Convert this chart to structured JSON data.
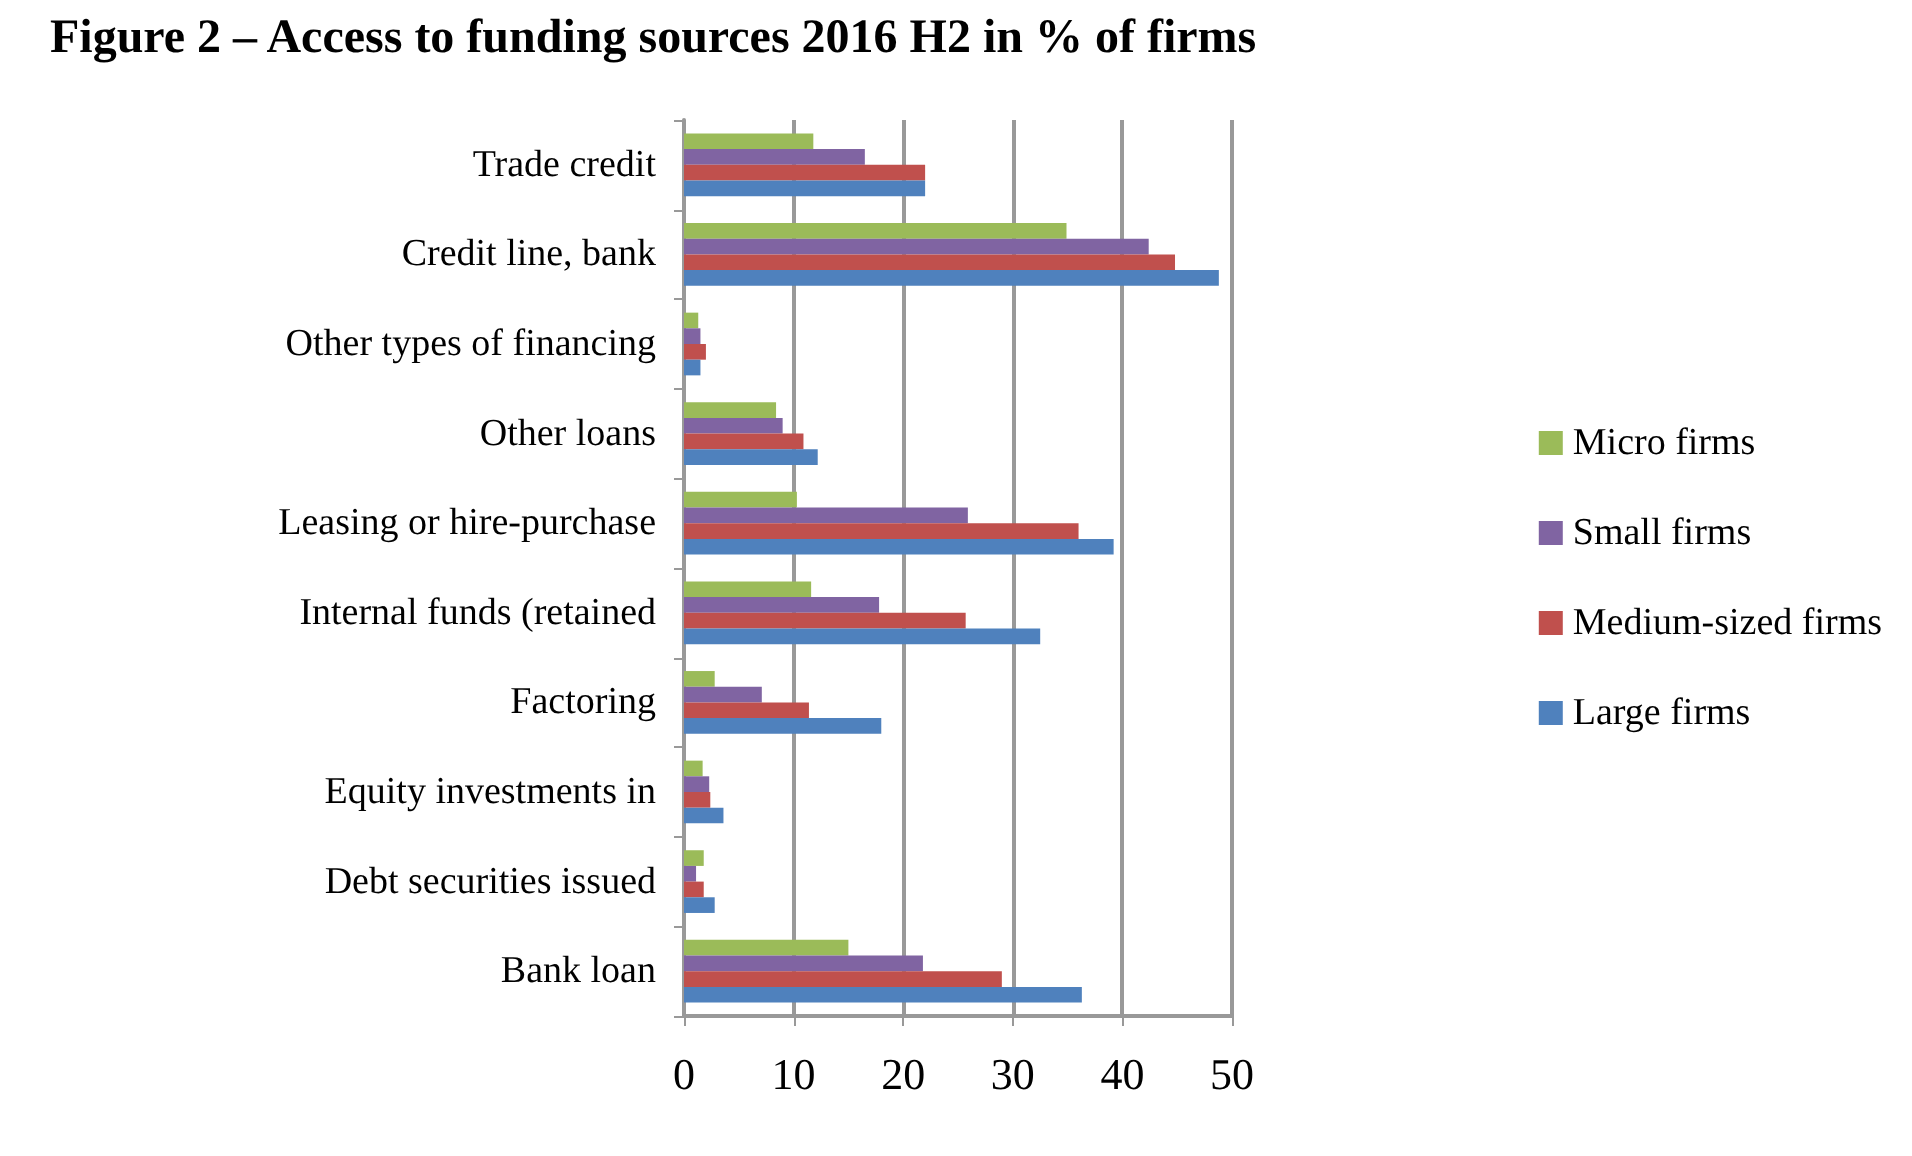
{
  "chart_data": {
    "type": "bar",
    "orientation": "horizontal",
    "title": "Figure 2 – Access to funding sources 2016 H2 in % of firms",
    "categories": [
      "Trade credit",
      "Credit line, bank",
      "Other types of financing",
      "Other loans",
      "Leasing or hire-purchase",
      "Internal funds (retained",
      "Factoring",
      "Equity investments in",
      "Debt securities issued",
      "Bank loan"
    ],
    "series": [
      {
        "name": "Micro firms",
        "color": "#9bbb59",
        "values": [
          11.8,
          34.9,
          1.3,
          8.4,
          10.3,
          11.6,
          2.8,
          1.7,
          1.8,
          15
        ]
      },
      {
        "name": "Small firms",
        "color": "#8064a2",
        "values": [
          16.5,
          42.4,
          1.5,
          9,
          25.9,
          17.8,
          7.1,
          2.3,
          1.1,
          21.8
        ]
      },
      {
        "name": "Medium-sized firms",
        "color": "#c0504d",
        "values": [
          22,
          44.8,
          2,
          10.9,
          36,
          25.7,
          11.4,
          2.4,
          1.8,
          29
        ]
      },
      {
        "name": "Large firms",
        "color": "#4f81bd",
        "values": [
          22,
          48.8,
          1.5,
          12.2,
          39.2,
          32.5,
          18,
          3.6,
          2.8,
          36.3
        ]
      }
    ],
    "xlim": [
      0,
      50
    ],
    "xticks": [
      0,
      10,
      20,
      30,
      40,
      50
    ],
    "grid": "x",
    "legend": "right"
  }
}
